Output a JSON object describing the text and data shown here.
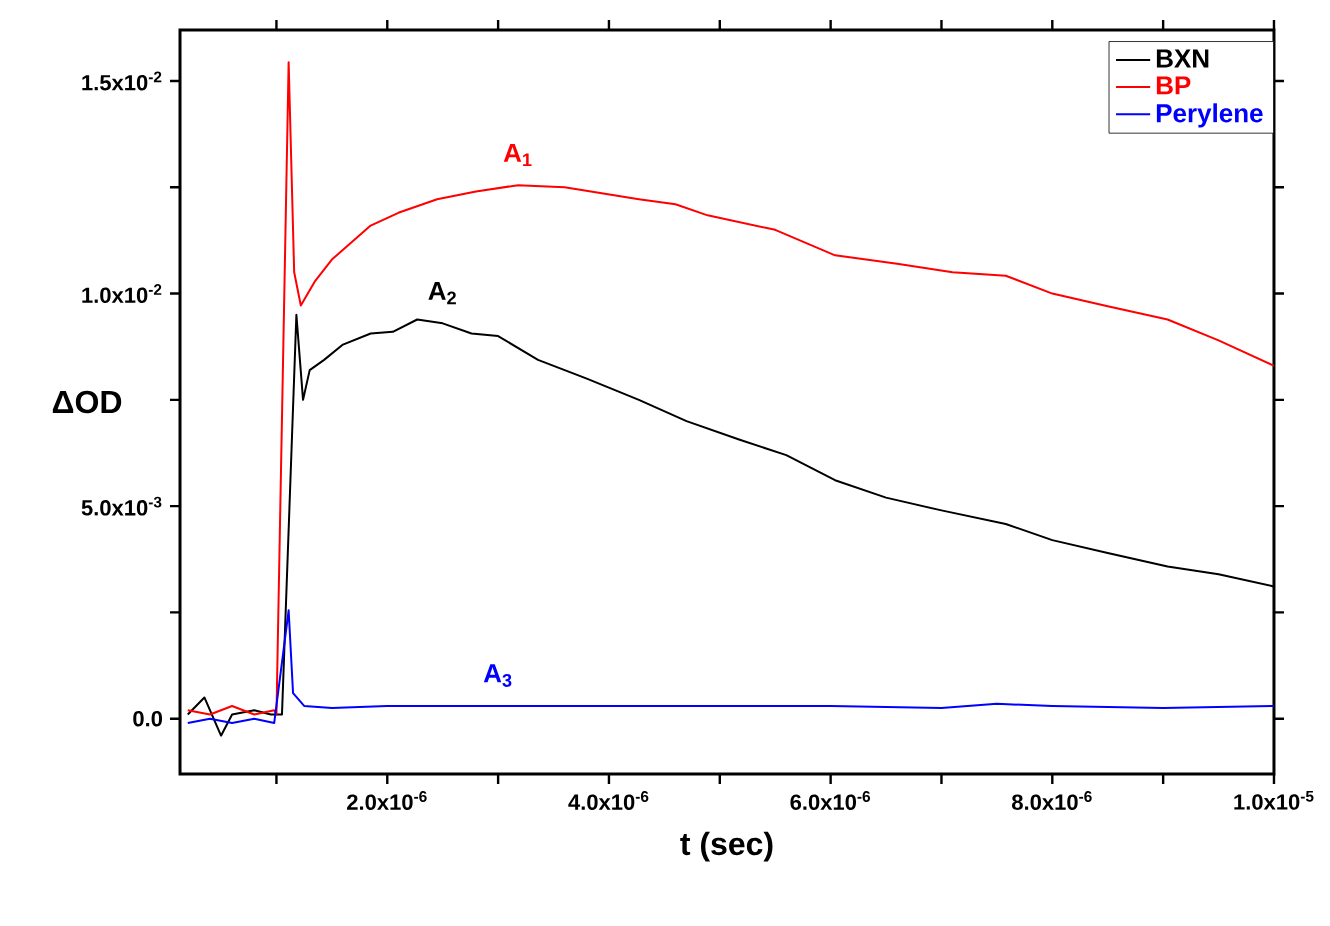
{
  "chart_data": {
    "type": "line",
    "xlabel": "t (sec)",
    "ylabel": "ΔOD",
    "xlim": [
      1.3e-07,
      1e-05
    ],
    "ylim": [
      -0.0013,
      0.0162
    ],
    "xticks": [
      {
        "value": 1e-06,
        "label": null
      },
      {
        "value": 2e-06,
        "label": "2.0x10$^{-6}$"
      },
      {
        "value": 3e-06,
        "label": null
      },
      {
        "value": 4e-06,
        "label": "4.0x10$^{-6}$"
      },
      {
        "value": 5e-06,
        "label": null
      },
      {
        "value": 6e-06,
        "label": "6.0x10$^{-6}$"
      },
      {
        "value": 7e-06,
        "label": null
      },
      {
        "value": 8e-06,
        "label": "8.0x10$^{-6}$"
      },
      {
        "value": 9e-06,
        "label": null
      },
      {
        "value": 1e-05,
        "label": "1.0x10$^{-5}$"
      }
    ],
    "yticks": [
      {
        "value": 0,
        "label": "0.0"
      },
      {
        "value": 0.0025,
        "label": null
      },
      {
        "value": 0.005,
        "label": "5.0x10$^{-3}$"
      },
      {
        "value": 0.0075,
        "label": null
      },
      {
        "value": 0.01,
        "label": "1.0x10$^{-2}$"
      },
      {
        "value": 0.0125,
        "label": null
      },
      {
        "value": 0.015,
        "label": "1.5x10$^{-2}$"
      }
    ],
    "legend": "top right",
    "line_style": "solid",
    "marker": "none",
    "series": [
      {
        "name": "BXN",
        "color": "#000000",
        "x": [
          2e-07,
          3.5e-07,
          5e-07,
          6e-07,
          8e-07,
          9.5e-07,
          1.05e-06,
          1.11e-06,
          1.18e-06,
          1.24e-06,
          1.3e-06,
          1.43e-06,
          1.6e-06,
          1.85e-06,
          2.05e-06,
          2.27e-06,
          2.5e-06,
          2.76e-06,
          3e-06,
          3.36e-06,
          3.8e-06,
          4.27e-06,
          4.7e-06,
          5.18e-06,
          5.6e-06,
          6.04e-06,
          6.5e-06,
          7e-06,
          7.58e-06,
          8e-06,
          8.5e-06,
          9.04e-06,
          9.5e-06,
          1e-05
        ],
        "values": [
          0.0001,
          0.0005,
          -0.0004,
          0.0001,
          0.0002,
          0.0001,
          0.0001,
          null,
          0.0095,
          0.0075,
          0.0082,
          0.00844,
          0.0088,
          0.00906,
          0.0091,
          0.00939,
          0.0093,
          0.00906,
          0.009,
          0.00844,
          0.008,
          0.0075,
          0.007,
          0.00656,
          0.0062,
          0.00561,
          0.0052,
          0.0049,
          0.00458,
          0.0042,
          0.0039,
          0.00358,
          0.0034,
          0.00311
        ]
      },
      {
        "name": "BP",
        "color": "#ff0000",
        "x": [
          2e-07,
          4e-07,
          6e-07,
          8e-07,
          9.8e-07,
          1e-06,
          1.02e-06,
          1.08e-06,
          1.11e-06,
          1.16e-06,
          1.22e-06,
          1.35e-06,
          1.5e-06,
          1.85e-06,
          2.1e-06,
          2.45e-06,
          2.8e-06,
          3.18e-06,
          3.6e-06,
          4.27e-06,
          4.6e-06,
          4.89e-06,
          5.5e-06,
          6.04e-06,
          6.6e-06,
          7.1e-06,
          7.58e-06,
          8e-06,
          8.5e-06,
          9.04e-06,
          9.5e-06,
          1e-05
        ],
        "values": [
          0.0002,
          0.0001,
          0.0003,
          0.0001,
          0.0002,
          0.0001,
          null,
          null,
          0.01544,
          0.0105,
          0.00972,
          0.0103,
          0.0108,
          0.0116,
          0.0119,
          0.01222,
          0.0124,
          0.01255,
          0.0125,
          0.01222,
          0.0121,
          0.01184,
          0.0115,
          0.0109,
          0.0107,
          0.0105,
          0.01042,
          0.01,
          0.0097,
          0.00939,
          0.0089,
          0.0083
        ]
      },
      {
        "name": "Perylene",
        "color": "#0000ff",
        "x": [
          2e-07,
          4e-07,
          6e-07,
          8e-07,
          9.8e-07,
          1e-06,
          1.05e-06,
          1.11e-06,
          1.15e-06,
          1.25e-06,
          1.5e-06,
          2e-06,
          3e-06,
          4e-06,
          5e-06,
          6e-06,
          7e-06,
          7.5e-06,
          8e-06,
          9e-06,
          1e-05
        ],
        "values": [
          -0.0001,
          0,
          -0.0001,
          0,
          -0.0001,
          null,
          null,
          0.00255,
          0.0006,
          0.0003,
          0.00025,
          0.0003,
          0.0003,
          0.0003,
          0.0003,
          0.0003,
          0.00025,
          0.00035,
          0.0003,
          0.00025,
          0.0003
        ]
      }
    ],
    "annotations": [
      {
        "text": "A$_{1}$",
        "x": 3.18e-06,
        "y": 0.01255
      },
      {
        "text": "A$_{2}$",
        "x": 2.5e-06,
        "y": 0.0093
      },
      {
        "text": "A$_{3}$",
        "x": 3e-06,
        "y": 0.0003
      }
    ]
  }
}
